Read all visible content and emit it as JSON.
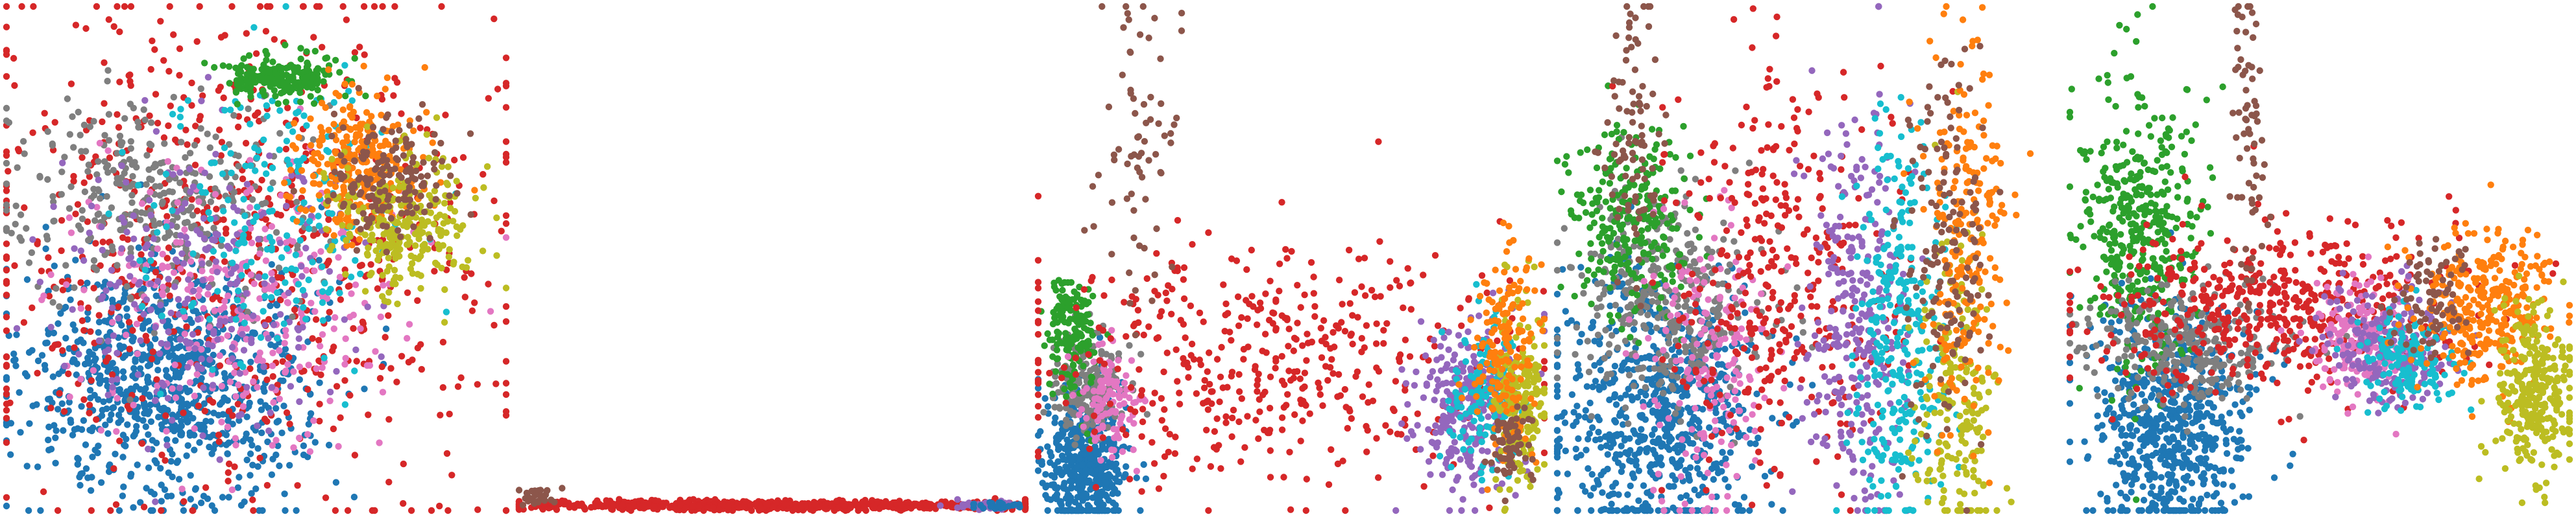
{
  "figure": {
    "caption": ""
  },
  "palette": {
    "c0": "#1f77b4",
    "c1": "#ff7f0e",
    "c2": "#2ca02c",
    "c3": "#d62728",
    "c4": "#9467bd",
    "c5": "#8c564b",
    "c6": "#e377c2",
    "c7": "#7f7f7f",
    "c8": "#bcbd22",
    "c9": "#17becf"
  },
  "chart_data": [
    {
      "type": "scatter",
      "title": "",
      "axes_visible": false,
      "grid": false,
      "legend": "none",
      "xlim": [
        0,
        1
      ],
      "ylim": [
        0,
        1
      ],
      "clusters": [
        {
          "color": "c0",
          "cx": 0.32,
          "cy": 0.25,
          "sx": 0.14,
          "sy": 0.12,
          "n": 900
        },
        {
          "color": "c3",
          "cx": 0.45,
          "cy": 0.55,
          "sx": 0.28,
          "sy": 0.28,
          "n": 700
        },
        {
          "color": "c7",
          "cx": 0.3,
          "cy": 0.62,
          "sx": 0.14,
          "sy": 0.1,
          "n": 350
        },
        {
          "color": "c6",
          "cx": 0.48,
          "cy": 0.4,
          "sx": 0.16,
          "sy": 0.14,
          "n": 300
        },
        {
          "color": "c4",
          "cx": 0.4,
          "cy": 0.45,
          "sx": 0.16,
          "sy": 0.14,
          "n": 250
        },
        {
          "color": "c9",
          "cx": 0.52,
          "cy": 0.58,
          "sx": 0.13,
          "sy": 0.14,
          "n": 200
        },
        {
          "color": "c2",
          "cx": 0.55,
          "cy": 0.86,
          "sx": 0.05,
          "sy": 0.02,
          "n": 220
        },
        {
          "color": "c1",
          "cx": 0.7,
          "cy": 0.68,
          "sx": 0.06,
          "sy": 0.07,
          "n": 260
        },
        {
          "color": "c8",
          "cx": 0.8,
          "cy": 0.57,
          "sx": 0.07,
          "sy": 0.07,
          "n": 260
        },
        {
          "color": "c5",
          "cx": 0.76,
          "cy": 0.66,
          "sx": 0.06,
          "sy": 0.06,
          "n": 160
        }
      ]
    },
    {
      "type": "scatter",
      "title": "",
      "axes_visible": false,
      "grid": false,
      "legend": "none",
      "xlim": [
        0,
        1
      ],
      "ylim": [
        0,
        1
      ],
      "clusters": [
        {
          "color": "c3",
          "cx": 0.5,
          "cy": 0.01,
          "sx": 0.28,
          "sy": 0.005,
          "n": 700
        },
        {
          "color": "c5",
          "cx": 0.04,
          "cy": 0.03,
          "sx": 0.02,
          "sy": 0.01,
          "n": 30
        },
        {
          "color": "c4",
          "cx": 0.92,
          "cy": 0.01,
          "sx": 0.03,
          "sy": 0.004,
          "n": 40
        },
        {
          "color": "c0",
          "cx": 0.94,
          "cy": 0.01,
          "sx": 0.03,
          "sy": 0.004,
          "n": 25
        }
      ]
    },
    {
      "type": "scatter",
      "title": "",
      "axes_visible": false,
      "grid": false,
      "legend": "none",
      "xlim": [
        0,
        1
      ],
      "ylim": [
        0,
        1
      ],
      "clusters": [
        {
          "color": "c0",
          "cx": 0.09,
          "cy": 0.09,
          "sx": 0.04,
          "sy": 0.07,
          "n": 500
        },
        {
          "color": "c7",
          "cx": 0.1,
          "cy": 0.25,
          "sx": 0.04,
          "sy": 0.05,
          "n": 180
        },
        {
          "color": "c2",
          "cx": 0.07,
          "cy": 0.36,
          "sx": 0.025,
          "sy": 0.06,
          "n": 160
        },
        {
          "color": "c6",
          "cx": 0.14,
          "cy": 0.22,
          "sx": 0.03,
          "sy": 0.06,
          "n": 110
        },
        {
          "color": "c3",
          "cx": 0.45,
          "cy": 0.3,
          "sx": 0.25,
          "sy": 0.12,
          "n": 450
        },
        {
          "color": "c5",
          "cx": 0.2,
          "cy": 0.72,
          "sx": 0.05,
          "sy": 0.18,
          "n": 70
        },
        {
          "color": "c4",
          "cx": 0.84,
          "cy": 0.2,
          "sx": 0.05,
          "sy": 0.09,
          "n": 260
        },
        {
          "color": "c9",
          "cx": 0.87,
          "cy": 0.23,
          "sx": 0.04,
          "sy": 0.07,
          "n": 140
        },
        {
          "color": "c8",
          "cx": 0.95,
          "cy": 0.22,
          "sx": 0.025,
          "sy": 0.09,
          "n": 200
        },
        {
          "color": "c1",
          "cx": 0.92,
          "cy": 0.32,
          "sx": 0.03,
          "sy": 0.1,
          "n": 160
        },
        {
          "color": "c5",
          "cx": 0.93,
          "cy": 0.12,
          "sx": 0.02,
          "sy": 0.04,
          "n": 70
        }
      ]
    },
    {
      "type": "scatter",
      "title": "",
      "axes_visible": false,
      "grid": false,
      "legend": "none",
      "xlim": [
        0,
        1
      ],
      "ylim": [
        0,
        1
      ],
      "clusters": [
        {
          "color": "c0",
          "cx": 0.2,
          "cy": 0.2,
          "sx": 0.1,
          "sy": 0.13,
          "n": 700
        },
        {
          "color": "c7",
          "cx": 0.22,
          "cy": 0.42,
          "sx": 0.1,
          "sy": 0.1,
          "n": 350
        },
        {
          "color": "c2",
          "cx": 0.15,
          "cy": 0.58,
          "sx": 0.06,
          "sy": 0.1,
          "n": 250
        },
        {
          "color": "c6",
          "cx": 0.3,
          "cy": 0.28,
          "sx": 0.06,
          "sy": 0.14,
          "n": 180
        },
        {
          "color": "c3",
          "cx": 0.45,
          "cy": 0.45,
          "sx": 0.12,
          "sy": 0.2,
          "n": 350
        },
        {
          "color": "c5",
          "cx": 0.15,
          "cy": 0.75,
          "sx": 0.03,
          "sy": 0.15,
          "n": 90
        },
        {
          "color": "c4",
          "cx": 0.6,
          "cy": 0.4,
          "sx": 0.05,
          "sy": 0.2,
          "n": 300
        },
        {
          "color": "c9",
          "cx": 0.68,
          "cy": 0.35,
          "sx": 0.05,
          "sy": 0.2,
          "n": 300
        },
        {
          "color": "c8",
          "cx": 0.8,
          "cy": 0.22,
          "sx": 0.04,
          "sy": 0.16,
          "n": 200
        },
        {
          "color": "c1",
          "cx": 0.82,
          "cy": 0.55,
          "sx": 0.04,
          "sy": 0.18,
          "n": 220
        },
        {
          "color": "c5",
          "cx": 0.78,
          "cy": 0.5,
          "sx": 0.04,
          "sy": 0.18,
          "n": 150
        }
      ]
    },
    {
      "type": "scatter",
      "title": "",
      "axes_visible": false,
      "grid": false,
      "legend": "none",
      "xlim": [
        0,
        1
      ],
      "ylim": [
        0,
        1
      ],
      "clusters": [
        {
          "color": "c0",
          "cx": 0.2,
          "cy": 0.18,
          "sx": 0.08,
          "sy": 0.12,
          "n": 650
        },
        {
          "color": "c2",
          "cx": 0.14,
          "cy": 0.56,
          "sx": 0.06,
          "sy": 0.14,
          "n": 420
        },
        {
          "color": "c7",
          "cx": 0.24,
          "cy": 0.33,
          "sx": 0.1,
          "sy": 0.06,
          "n": 300
        },
        {
          "color": "c3",
          "cx": 0.42,
          "cy": 0.4,
          "sx": 0.18,
          "sy": 0.08,
          "n": 500
        },
        {
          "color": "c5",
          "cx": 0.36,
          "cy": 0.72,
          "sx": 0.02,
          "sy": 0.16,
          "n": 70
        },
        {
          "color": "c6",
          "cx": 0.58,
          "cy": 0.34,
          "sx": 0.05,
          "sy": 0.06,
          "n": 180
        },
        {
          "color": "c4",
          "cx": 0.64,
          "cy": 0.33,
          "sx": 0.06,
          "sy": 0.06,
          "n": 220
        },
        {
          "color": "c9",
          "cx": 0.68,
          "cy": 0.3,
          "sx": 0.05,
          "sy": 0.05,
          "n": 150
        },
        {
          "color": "c1",
          "cx": 0.84,
          "cy": 0.4,
          "sx": 0.07,
          "sy": 0.08,
          "n": 320
        },
        {
          "color": "c8",
          "cx": 0.93,
          "cy": 0.24,
          "sx": 0.04,
          "sy": 0.08,
          "n": 300
        },
        {
          "color": "c5",
          "cx": 0.72,
          "cy": 0.42,
          "sx": 0.04,
          "sy": 0.06,
          "n": 80
        }
      ]
    }
  ]
}
